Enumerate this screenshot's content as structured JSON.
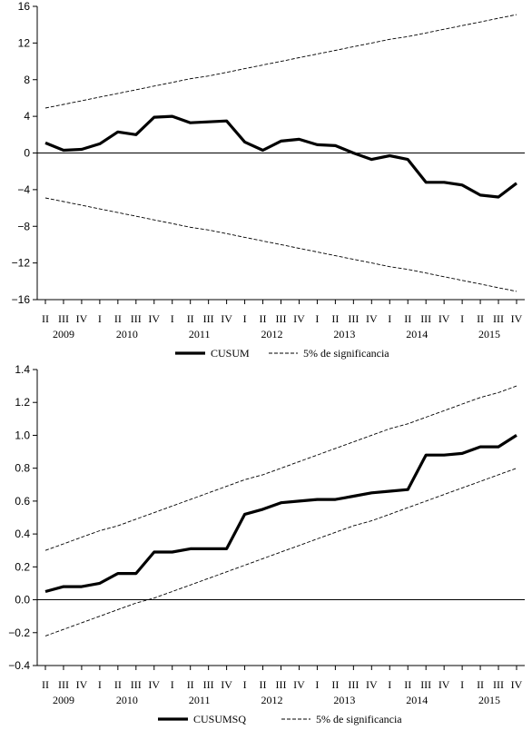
{
  "chart_data": [
    {
      "type": "line",
      "ylim": [
        -16,
        16
      ],
      "yticks": [
        "16",
        "12",
        "8",
        "4",
        "0",
        "−4",
        "−8",
        "−12",
        "−16"
      ],
      "ytick_values": [
        16,
        12,
        8,
        4,
        0,
        -4,
        -8,
        -12,
        -16
      ],
      "quarters": [
        "II",
        "III",
        "IV",
        "I",
        "II",
        "III",
        "IV",
        "I",
        "II",
        "III",
        "IV",
        "I",
        "II",
        "III",
        "IV",
        "I",
        "II",
        "III",
        "IV",
        "I",
        "II",
        "III",
        "IV",
        "I",
        "II",
        "III",
        "IV"
      ],
      "years": [
        "2009",
        "2010",
        "2011",
        "2012",
        "2013",
        "2014",
        "2015"
      ],
      "series": [
        {
          "name": "CUSUM",
          "style": "solid-thick",
          "values": [
            1.1,
            0.3,
            0.4,
            1.0,
            2.3,
            2.0,
            3.9,
            4.0,
            3.3,
            3.4,
            3.5,
            1.2,
            0.3,
            1.3,
            1.5,
            0.9,
            0.8,
            0.0,
            -0.7,
            -0.3,
            -0.7,
            -3.2,
            -3.2,
            -3.5,
            -4.6,
            -4.8,
            -3.3
          ]
        },
        {
          "name": "5% de significancia",
          "style": "dashed",
          "values": [
            4.9,
            5.3,
            5.7,
            6.1,
            6.5,
            6.9,
            7.3,
            7.7,
            8.1,
            8.4,
            8.8,
            9.2,
            9.6,
            10.0,
            10.4,
            10.8,
            11.2,
            11.6,
            12.0,
            12.4,
            12.7,
            13.1,
            13.5,
            13.9,
            14.3,
            14.7,
            15.1
          ]
        },
        {
          "name": "5% de significancia (lower)",
          "style": "dashed",
          "values": [
            -4.9,
            -5.3,
            -5.7,
            -6.1,
            -6.5,
            -6.9,
            -7.3,
            -7.7,
            -8.1,
            -8.4,
            -8.8,
            -9.2,
            -9.6,
            -10.0,
            -10.4,
            -10.8,
            -11.2,
            -11.6,
            -12.0,
            -12.4,
            -12.7,
            -13.1,
            -13.5,
            -13.9,
            -14.3,
            -14.7,
            -15.1
          ]
        }
      ],
      "legend": [
        {
          "label": "CUSUM",
          "style": "solid-thick"
        },
        {
          "label": "5% de significancia",
          "style": "dashed"
        }
      ],
      "legend_position": "bottom",
      "grid": false
    },
    {
      "type": "line",
      "ylim": [
        -0.4,
        1.4
      ],
      "yticks": [
        "1.4",
        "1.2",
        "1.0",
        "0.8",
        "0.6",
        "0.4",
        "0.2",
        "0.0",
        "−0.2",
        "−0.4"
      ],
      "ytick_values": [
        1.4,
        1.2,
        1.0,
        0.8,
        0.6,
        0.4,
        0.2,
        0.0,
        -0.2,
        -0.4
      ],
      "quarters": [
        "II",
        "III",
        "IV",
        "I",
        "II",
        "III",
        "IV",
        "I",
        "II",
        "III",
        "IV",
        "I",
        "II",
        "III",
        "IV",
        "I",
        "II",
        "III",
        "IV",
        "I",
        "II",
        "III",
        "IV",
        "I",
        "II",
        "III",
        "IV"
      ],
      "years": [
        "2009",
        "2010",
        "2011",
        "2012",
        "2013",
        "2014",
        "2015"
      ],
      "series": [
        {
          "name": "CUSUMSQ",
          "style": "solid-thick",
          "values": [
            0.05,
            0.08,
            0.08,
            0.1,
            0.16,
            0.16,
            0.29,
            0.29,
            0.31,
            0.31,
            0.31,
            0.52,
            0.55,
            0.59,
            0.6,
            0.61,
            0.61,
            0.63,
            0.65,
            0.66,
            0.67,
            0.88,
            0.88,
            0.89,
            0.93,
            0.93,
            1.0
          ]
        },
        {
          "name": "5% de significancia",
          "style": "dashed",
          "values": [
            0.3,
            0.34,
            0.38,
            0.42,
            0.45,
            0.49,
            0.53,
            0.57,
            0.61,
            0.65,
            0.69,
            0.73,
            0.76,
            0.8,
            0.84,
            0.88,
            0.92,
            0.96,
            1.0,
            1.04,
            1.07,
            1.11,
            1.15,
            1.19,
            1.23,
            1.26,
            1.3
          ]
        },
        {
          "name": "5% de significancia (lower)",
          "style": "dashed",
          "values": [
            -0.22,
            -0.18,
            -0.14,
            -0.1,
            -0.06,
            -0.02,
            0.01,
            0.05,
            0.09,
            0.13,
            0.17,
            0.21,
            0.25,
            0.29,
            0.33,
            0.37,
            0.41,
            0.45,
            0.48,
            0.52,
            0.56,
            0.6,
            0.64,
            0.68,
            0.72,
            0.76,
            0.8
          ]
        }
      ],
      "legend": [
        {
          "label": "CUSUMSQ",
          "style": "solid-thick"
        },
        {
          "label": "5% de significancia",
          "style": "dashed"
        }
      ],
      "legend_position": "bottom",
      "grid": false
    }
  ]
}
